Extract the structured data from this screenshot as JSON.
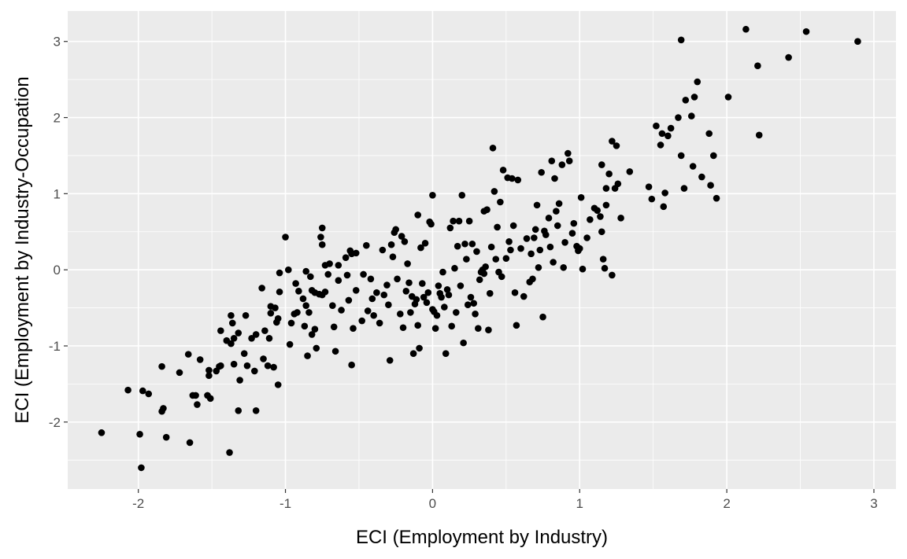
{
  "chart_data": {
    "type": "scatter",
    "xlabel": "ECI (Employment by Industry)",
    "ylabel": "ECI (Employment by Industry-Occupation",
    "xlim": [
      -2.48,
      3.15
    ],
    "ylim": [
      -2.88,
      3.4
    ],
    "xticks": [
      -2,
      -1,
      0,
      1,
      2,
      3
    ],
    "yticks": [
      -2,
      -1,
      0,
      1,
      2,
      3
    ],
    "xtick_labels": [
      "-2",
      "-1",
      "0",
      "1",
      "2",
      "3"
    ],
    "ytick_labels": [
      "-2",
      "-1",
      "0",
      "1",
      "2",
      "3"
    ],
    "grid": true,
    "legend": "none",
    "point_color": "#000000",
    "panel_color": "#ebebeb",
    "points": [
      [
        -2.25,
        -2.14
      ],
      [
        -2.07,
        -1.58
      ],
      [
        -1.99,
        -2.16
      ],
      [
        -1.98,
        -2.6
      ],
      [
        -1.97,
        -1.59
      ],
      [
        -1.93,
        -1.63
      ],
      [
        -1.84,
        -1.86
      ],
      [
        -1.84,
        -1.27
      ],
      [
        -1.83,
        -1.82
      ],
      [
        -1.81,
        -2.2
      ],
      [
        -1.72,
        -1.35
      ],
      [
        -1.66,
        -1.11
      ],
      [
        -1.65,
        -2.27
      ],
      [
        -1.63,
        -1.65
      ],
      [
        -1.61,
        -1.65
      ],
      [
        -1.6,
        -1.77
      ],
      [
        -1.58,
        -1.18
      ],
      [
        -1.53,
        -1.65
      ],
      [
        -1.52,
        -1.39
      ],
      [
        -1.52,
        -1.32
      ],
      [
        -1.51,
        -1.69
      ],
      [
        -1.47,
        -1.33
      ],
      [
        -1.45,
        -1.27
      ],
      [
        -1.44,
        -0.8
      ],
      [
        -1.44,
        -1.26
      ],
      [
        -1.4,
        -0.93
      ],
      [
        -1.38,
        -2.4
      ],
      [
        -1.37,
        -0.97
      ],
      [
        -1.37,
        -0.6
      ],
      [
        -1.36,
        -0.7
      ],
      [
        -1.35,
        -1.24
      ],
      [
        -1.35,
        -0.9
      ],
      [
        -1.32,
        -1.85
      ],
      [
        -1.32,
        -0.83
      ],
      [
        -1.31,
        -1.45
      ],
      [
        -1.28,
        -1.1
      ],
      [
        -1.27,
        -0.6
      ],
      [
        -1.26,
        -1.26
      ],
      [
        -1.23,
        -0.9
      ],
      [
        -1.21,
        -1.33
      ],
      [
        -1.2,
        -1.85
      ],
      [
        -1.2,
        -0.85
      ],
      [
        -1.16,
        -0.24
      ],
      [
        -1.15,
        -1.17
      ],
      [
        -1.14,
        -0.8
      ],
      [
        -1.12,
        -1.26
      ],
      [
        -1.11,
        -0.9
      ],
      [
        -1.1,
        -0.48
      ],
      [
        -1.1,
        -0.57
      ],
      [
        -1.08,
        -1.28
      ],
      [
        -1.07,
        -0.5
      ],
      [
        -1.06,
        -0.69
      ],
      [
        -1.05,
        -1.51
      ],
      [
        -1.05,
        -0.64
      ],
      [
        -1.04,
        -0.04
      ],
      [
        -1.04,
        -0.29
      ],
      [
        -1.0,
        0.43
      ],
      [
        -0.98,
        0.0
      ],
      [
        -0.97,
        -0.98
      ],
      [
        -0.96,
        -0.7
      ],
      [
        -0.94,
        -0.58
      ],
      [
        -0.93,
        -0.18
      ],
      [
        -0.92,
        -0.56
      ],
      [
        -0.91,
        -0.28
      ],
      [
        -0.88,
        -0.38
      ],
      [
        -0.87,
        -0.74
      ],
      [
        -0.86,
        -0.02
      ],
      [
        -0.86,
        -0.47
      ],
      [
        -0.85,
        -1.13
      ],
      [
        -0.84,
        -0.56
      ],
      [
        -0.83,
        -0.09
      ],
      [
        -0.82,
        -0.27
      ],
      [
        -0.82,
        -0.85
      ],
      [
        -0.8,
        -0.3
      ],
      [
        -0.8,
        -0.78
      ],
      [
        -0.79,
        -1.03
      ],
      [
        -0.77,
        -0.32
      ],
      [
        -0.76,
        0.43
      ],
      [
        -0.75,
        0.55
      ],
      [
        -0.75,
        0.33
      ],
      [
        -0.75,
        -0.33
      ],
      [
        -0.73,
        -0.29
      ],
      [
        -0.73,
        0.06
      ],
      [
        -0.71,
        -0.06
      ],
      [
        -0.7,
        0.08
      ],
      [
        -0.68,
        -0.47
      ],
      [
        -0.67,
        -0.75
      ],
      [
        -0.66,
        -1.07
      ],
      [
        -0.64,
        0.06
      ],
      [
        -0.64,
        -0.14
      ],
      [
        -0.62,
        -0.53
      ],
      [
        -0.59,
        0.16
      ],
      [
        -0.58,
        -0.07
      ],
      [
        -0.57,
        -0.4
      ],
      [
        -0.56,
        0.25
      ],
      [
        -0.55,
        0.21
      ],
      [
        -0.55,
        -1.25
      ],
      [
        -0.54,
        -0.77
      ],
      [
        -0.52,
        0.22
      ],
      [
        -0.52,
        -0.27
      ],
      [
        -0.48,
        -0.67
      ],
      [
        -0.47,
        -0.06
      ],
      [
        -0.45,
        0.32
      ],
      [
        -0.44,
        -0.54
      ],
      [
        -0.42,
        -0.12
      ],
      [
        -0.41,
        -0.38
      ],
      [
        -0.4,
        -0.6
      ],
      [
        -0.38,
        -0.3
      ],
      [
        -0.36,
        -0.7
      ],
      [
        -0.34,
        0.26
      ],
      [
        -0.33,
        -0.33
      ],
      [
        -0.31,
        -0.2
      ],
      [
        -0.3,
        -0.46
      ],
      [
        -0.29,
        -1.19
      ],
      [
        -0.28,
        0.33
      ],
      [
        -0.27,
        0.17
      ],
      [
        -0.26,
        0.49
      ],
      [
        -0.25,
        0.53
      ],
      [
        -0.24,
        -0.12
      ],
      [
        -0.22,
        -0.58
      ],
      [
        -0.21,
        0.44
      ],
      [
        -0.2,
        -0.76
      ],
      [
        -0.19,
        0.37
      ],
      [
        -0.18,
        -0.28
      ],
      [
        -0.17,
        0.08
      ],
      [
        -0.16,
        -0.17
      ],
      [
        -0.15,
        -0.56
      ],
      [
        -0.14,
        -0.35
      ],
      [
        -0.13,
        -1.1
      ],
      [
        -0.12,
        -0.45
      ],
      [
        -0.11,
        -0.39
      ],
      [
        -0.1,
        0.72
      ],
      [
        -0.1,
        -0.73
      ],
      [
        -0.09,
        -1.03
      ],
      [
        -0.08,
        0.29
      ],
      [
        -0.07,
        -0.18
      ],
      [
        -0.06,
        -0.36
      ],
      [
        -0.05,
        0.35
      ],
      [
        -0.04,
        -0.43
      ],
      [
        -0.03,
        -0.3
      ],
      [
        -0.02,
        0.63
      ],
      [
        -0.01,
        0.6
      ],
      [
        0.0,
        0.98
      ],
      [
        0.0,
        -0.52
      ],
      [
        0.01,
        -0.55
      ],
      [
        0.02,
        -0.77
      ],
      [
        0.03,
        -0.6
      ],
      [
        0.04,
        -0.21
      ],
      [
        0.05,
        -0.31
      ],
      [
        0.06,
        -0.36
      ],
      [
        0.07,
        -0.03
      ],
      [
        0.08,
        -0.49
      ],
      [
        0.09,
        -1.1
      ],
      [
        0.1,
        -0.26
      ],
      [
        0.11,
        -0.33
      ],
      [
        0.12,
        0.55
      ],
      [
        0.13,
        -0.74
      ],
      [
        0.14,
        0.64
      ],
      [
        0.15,
        0.02
      ],
      [
        0.16,
        -0.56
      ],
      [
        0.17,
        0.31
      ],
      [
        0.18,
        0.64
      ],
      [
        0.19,
        -0.21
      ],
      [
        0.2,
        0.98
      ],
      [
        0.21,
        -0.96
      ],
      [
        0.22,
        0.34
      ],
      [
        0.23,
        0.14
      ],
      [
        0.24,
        -0.46
      ],
      [
        0.25,
        0.64
      ],
      [
        0.26,
        -0.36
      ],
      [
        0.27,
        0.34
      ],
      [
        0.28,
        -0.44
      ],
      [
        0.29,
        -0.58
      ],
      [
        0.3,
        0.24
      ],
      [
        0.31,
        -0.77
      ],
      [
        0.32,
        -0.13
      ],
      [
        0.33,
        -0.03
      ],
      [
        0.34,
        0.0
      ],
      [
        0.35,
        -0.05
      ],
      [
        0.35,
        0.77
      ],
      [
        0.36,
        0.04
      ],
      [
        0.37,
        0.79
      ],
      [
        0.38,
        -0.79
      ],
      [
        0.39,
        -0.31
      ],
      [
        0.4,
        0.3
      ],
      [
        0.41,
        1.6
      ],
      [
        0.42,
        1.03
      ],
      [
        0.43,
        0.14
      ],
      [
        0.44,
        0.56
      ],
      [
        0.45,
        -0.03
      ],
      [
        0.46,
        0.89
      ],
      [
        0.47,
        -0.09
      ],
      [
        0.48,
        1.31
      ],
      [
        0.5,
        0.15
      ],
      [
        0.51,
        1.21
      ],
      [
        0.52,
        0.37
      ],
      [
        0.53,
        0.26
      ],
      [
        0.54,
        1.2
      ],
      [
        0.55,
        0.58
      ],
      [
        0.56,
        -0.3
      ],
      [
        0.57,
        -0.73
      ],
      [
        0.58,
        1.18
      ],
      [
        0.6,
        0.28
      ],
      [
        0.62,
        -0.35
      ],
      [
        0.64,
        0.41
      ],
      [
        0.66,
        -0.16
      ],
      [
        0.67,
        0.21
      ],
      [
        0.68,
        -0.12
      ],
      [
        0.69,
        0.42
      ],
      [
        0.7,
        0.53
      ],
      [
        0.71,
        0.85
      ],
      [
        0.72,
        0.03
      ],
      [
        0.73,
        0.26
      ],
      [
        0.74,
        1.28
      ],
      [
        0.75,
        -0.62
      ],
      [
        0.76,
        0.51
      ],
      [
        0.77,
        0.46
      ],
      [
        0.79,
        0.68
      ],
      [
        0.8,
        0.3
      ],
      [
        0.81,
        1.43
      ],
      [
        0.82,
        0.1
      ],
      [
        0.83,
        1.2
      ],
      [
        0.84,
        0.77
      ],
      [
        0.85,
        0.58
      ],
      [
        0.86,
        0.87
      ],
      [
        0.88,
        1.38
      ],
      [
        0.89,
        0.03
      ],
      [
        0.9,
        0.36
      ],
      [
        0.92,
        1.53
      ],
      [
        0.93,
        1.43
      ],
      [
        0.95,
        0.48
      ],
      [
        0.96,
        0.61
      ],
      [
        0.98,
        0.31
      ],
      [
        0.99,
        0.25
      ],
      [
        1.0,
        0.28
      ],
      [
        1.01,
        0.95
      ],
      [
        1.02,
        0.01
      ],
      [
        1.05,
        0.42
      ],
      [
        1.07,
        0.66
      ],
      [
        1.1,
        0.81
      ],
      [
        1.12,
        0.78
      ],
      [
        1.14,
        0.7
      ],
      [
        1.15,
        1.38
      ],
      [
        1.15,
        0.5
      ],
      [
        1.16,
        0.14
      ],
      [
        1.17,
        0.02
      ],
      [
        1.18,
        0.85
      ],
      [
        1.18,
        1.07
      ],
      [
        1.2,
        1.26
      ],
      [
        1.22,
        1.69
      ],
      [
        1.22,
        -0.07
      ],
      [
        1.24,
        1.07
      ],
      [
        1.25,
        1.63
      ],
      [
        1.26,
        1.13
      ],
      [
        1.28,
        0.68
      ],
      [
        1.34,
        1.29
      ],
      [
        1.47,
        1.09
      ],
      [
        1.49,
        0.93
      ],
      [
        1.52,
        1.89
      ],
      [
        1.55,
        1.64
      ],
      [
        1.56,
        1.79
      ],
      [
        1.57,
        0.83
      ],
      [
        1.58,
        1.01
      ],
      [
        1.6,
        1.76
      ],
      [
        1.62,
        1.86
      ],
      [
        1.67,
        2.0
      ],
      [
        1.69,
        3.02
      ],
      [
        1.69,
        1.5
      ],
      [
        1.71,
        1.07
      ],
      [
        1.72,
        2.23
      ],
      [
        1.76,
        2.02
      ],
      [
        1.77,
        1.36
      ],
      [
        1.78,
        2.27
      ],
      [
        1.8,
        2.47
      ],
      [
        1.83,
        1.22
      ],
      [
        1.88,
        1.79
      ],
      [
        1.89,
        1.11
      ],
      [
        1.91,
        1.5
      ],
      [
        1.93,
        0.94
      ],
      [
        2.01,
        2.27
      ],
      [
        2.13,
        3.16
      ],
      [
        2.21,
        2.68
      ],
      [
        2.22,
        1.77
      ],
      [
        2.42,
        2.79
      ],
      [
        2.54,
        3.13
      ],
      [
        2.89,
        3.0
      ]
    ]
  }
}
